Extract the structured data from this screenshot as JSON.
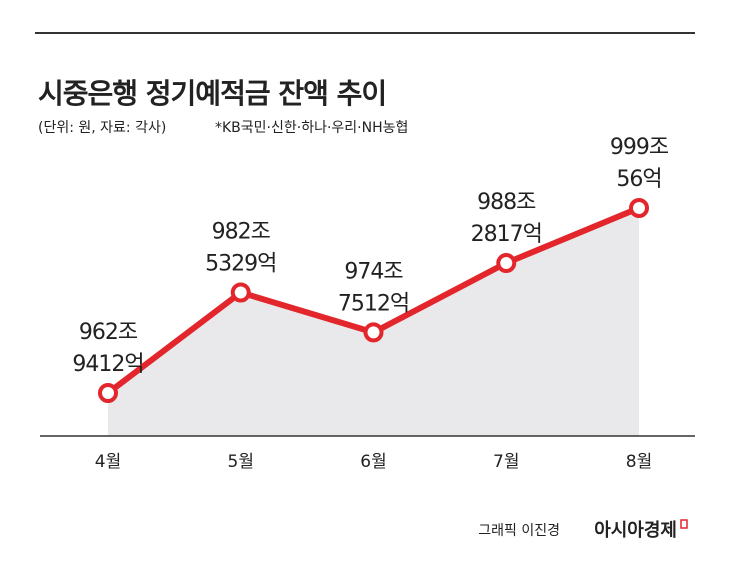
{
  "chart_data": {
    "type": "line",
    "title": "시중은행 정기예적금 잔액 추이",
    "subtitle": "(단위: 원, 자료: 각사)",
    "note": "*KB국민·신한·하나·우리·NH농협",
    "categories": [
      "4월",
      "5월",
      "6월",
      "7월",
      "8월"
    ],
    "values": [
      962.9412,
      982.5329,
      974.7512,
      988.2817,
      999.0056
    ],
    "value_labels": [
      [
        "962조",
        "9412억"
      ],
      [
        "982조",
        "5329억"
      ],
      [
        "974조",
        "7512억"
      ],
      [
        "988조",
        "2817억"
      ],
      [
        "999조",
        "56억"
      ]
    ],
    "color": "#e3262b",
    "area_color": "#e9e9ec"
  },
  "footer": {
    "credit": "그래픽 이진경",
    "brand": "아시아경제"
  }
}
